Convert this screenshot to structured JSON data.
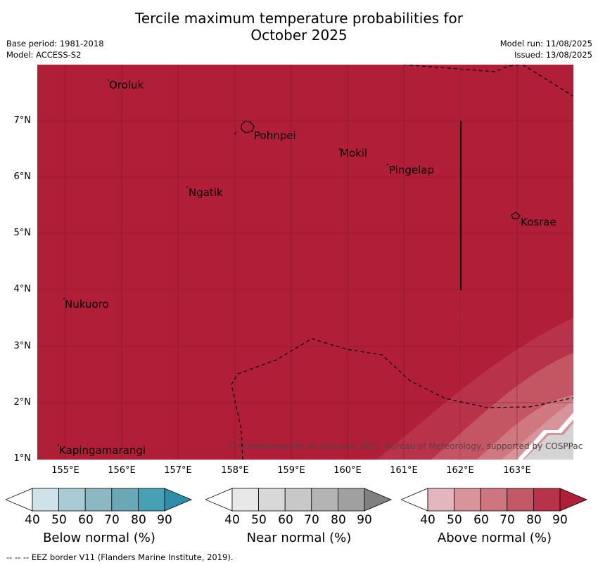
{
  "header": {
    "title_line1": "Tercile maximum temperature probabilities for",
    "title_line2": "October 2025",
    "base_period": "Base period: 1981-2018",
    "model": "Model: ACCESS-S2",
    "model_run": "Model run: 11/08/2025",
    "issued": "Issued: 13/08/2025"
  },
  "map": {
    "lat_labels": [
      "7°N",
      "6°N",
      "5°N",
      "4°N",
      "3°N",
      "2°N",
      "1°N"
    ],
    "lon_labels": [
      "155°E",
      "156°E",
      "157°E",
      "158°E",
      "159°E",
      "160°E",
      "161°E",
      "162°E",
      "163°E"
    ],
    "places": [
      "Oroluk",
      "Pohnpei",
      "Mokil",
      "Pingelap",
      "Ngatik",
      "Kosrae",
      "Nukuoro",
      "Kapingamarangi"
    ],
    "dominant_category": "Above normal 80-90%",
    "colors": {
      "above_90": "#b01e38",
      "above_80": "#b8324a",
      "above_70": "#c45664",
      "above_60": "#cf7880",
      "above_50": "#d8949b",
      "near_40": "#d4d4d4"
    },
    "copyright": "© Commonwealth of Australia 2025, Bureau of Meteorology, supported by COSPPac"
  },
  "legend": {
    "ticks": [
      "40",
      "50",
      "60",
      "70",
      "80",
      "90"
    ],
    "below": {
      "label": "Below normal (%)",
      "colors": [
        "#ffffff",
        "#cde3e9",
        "#a9ccd4",
        "#8cb8c3",
        "#6aa8b8",
        "#47a1b3",
        "#2c8ea8"
      ]
    },
    "near": {
      "label": "Near normal (%)",
      "colors": [
        "#ffffff",
        "#e8e8e8",
        "#d8d8d8",
        "#c8c8c8",
        "#b4b4b4",
        "#a0a0a0",
        "#808080"
      ]
    },
    "above": {
      "label": "Above normal (%)",
      "colors": [
        "#ffffff",
        "#e3b6be",
        "#d8939b",
        "#cd7680",
        "#c35866",
        "#b8324a",
        "#b01e38"
      ]
    }
  },
  "footnote": "--  --  -- EEZ border V11 (Flanders Marine Institute, 2019)."
}
